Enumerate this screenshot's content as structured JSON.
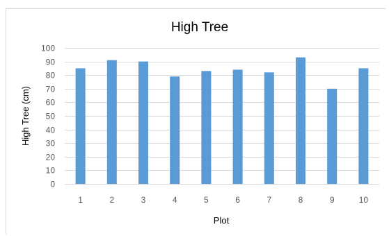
{
  "chart_data": {
    "type": "bar",
    "title": "High Tree",
    "xlabel": "Plot",
    "ylabel": "High Tree (cm)",
    "categories": [
      "1",
      "2",
      "3",
      "4",
      "5",
      "6",
      "7",
      "8",
      "9",
      "10"
    ],
    "series": [
      {
        "values": [
          85,
          91,
          90,
          79,
          83,
          84,
          82,
          93,
          70,
          85
        ]
      }
    ],
    "ylim": [
      0,
      100
    ],
    "yticks": [
      0,
      10,
      20,
      30,
      40,
      50,
      60,
      70,
      80,
      90,
      100
    ],
    "grid": true,
    "legend": "none",
    "bar_color": "#5b9bd5",
    "grid_color": "#d9d9d9"
  }
}
